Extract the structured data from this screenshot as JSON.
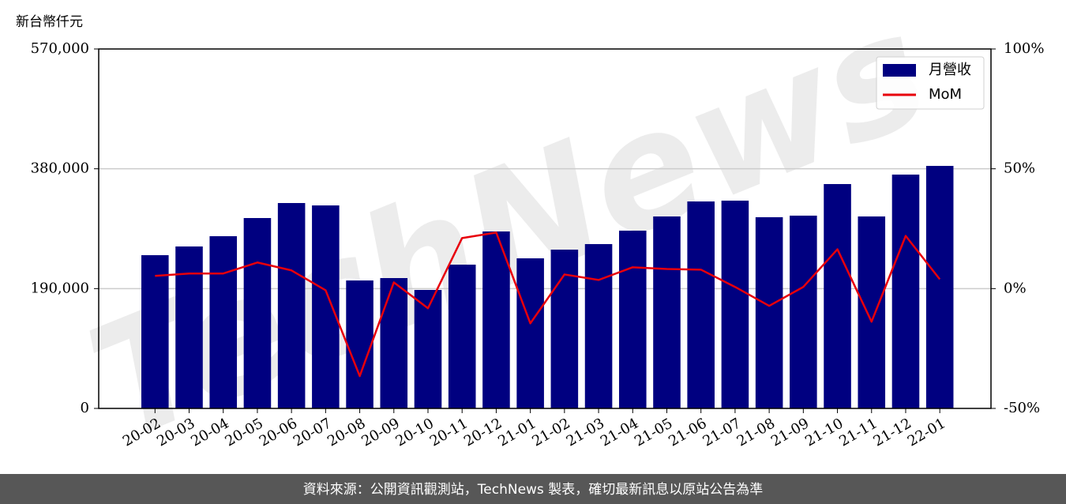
{
  "chart_data": {
    "type": "bar",
    "y_label": "新台幣仟元",
    "watermark": "TechNews",
    "footer": "資料來源：公開資訊觀測站，TechNews 製表，確切最新訊息以原站公告為準",
    "categories": [
      "20-02",
      "20-03",
      "20-04",
      "20-05",
      "20-06",
      "20-07",
      "20-08",
      "20-09",
      "20-10",
      "20-11",
      "20-12",
      "21-01",
      "21-02",
      "21-03",
      "21-04",
      "21-05",
      "21-06",
      "21-07",
      "21-08",
      "21-09",
      "21-10",
      "21-11",
      "21-12",
      "22-01"
    ],
    "series": [
      {
        "name": "月營收",
        "type": "bar",
        "color": "#000080",
        "axis": "y",
        "values": [
          243000,
          256800,
          273100,
          301900,
          325700,
          321900,
          202900,
          206700,
          187900,
          228000,
          280600,
          238000,
          251800,
          260600,
          281900,
          304400,
          328200,
          329500,
          303200,
          305700,
          355800,
          304400,
          370800,
          384600
        ]
      },
      {
        "name": "MoM",
        "type": "line",
        "color": "#e8000b",
        "axis": "y2",
        "values": [
          5.3,
          6.3,
          6.3,
          10.9,
          7.6,
          -0.7,
          -36.5,
          2.6,
          -8.2,
          21.1,
          23.4,
          -14.5,
          5.9,
          3.6,
          8.9,
          8.2,
          7.9,
          0.7,
          -7.2,
          0.7,
          16.4,
          -13.8,
          22.0,
          3.9
        ]
      }
    ],
    "ylim": [
      0,
      570000
    ],
    "yticks": [
      {
        "value": 0,
        "label": "0"
      },
      {
        "value": 190000,
        "label": "190,000"
      },
      {
        "value": 380000,
        "label": "380,000"
      },
      {
        "value": 570000,
        "label": "570,000"
      }
    ],
    "y2lim": [
      -50,
      100
    ],
    "y2ticks": [
      {
        "value": -50,
        "label": "-50%"
      },
      {
        "value": 0,
        "label": "0%"
      },
      {
        "value": 50,
        "label": "50%"
      },
      {
        "value": 100,
        "label": "100%"
      }
    ],
    "grid": true,
    "legend": "upper right"
  }
}
